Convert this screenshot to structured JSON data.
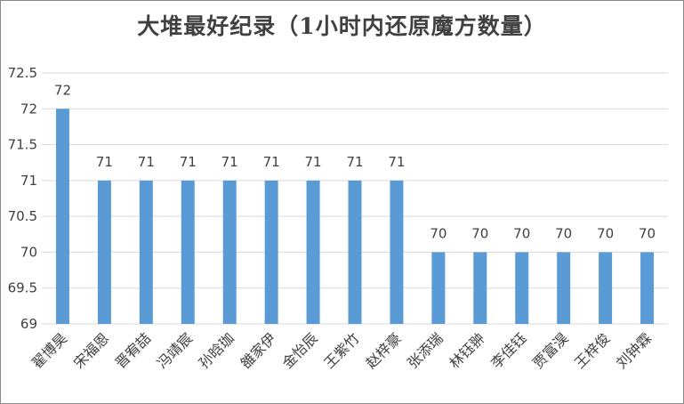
{
  "chart_data": {
    "type": "bar",
    "title": "大堆最好纪录（1小时内还原魔方数量）",
    "categories": [
      "翟博昊",
      "宋福恩",
      "晋宥喆",
      "冯靖宸",
      "孙晗珈",
      "雒家伊",
      "金怡辰",
      "王紫竹",
      "赵梓豪",
      "张添瑞",
      "林钰翀",
      "李佳钰",
      "贾富淏",
      "王梓俊",
      "刘钟霖"
    ],
    "values": [
      72,
      71,
      71,
      71,
      71,
      71,
      71,
      71,
      71,
      70,
      70,
      70,
      70,
      70,
      70
    ],
    "ylim": [
      69,
      72.5
    ],
    "yticks": [
      "69",
      "69.5",
      "70",
      "70.5",
      "71",
      "71.5",
      "72",
      "72.5"
    ],
    "grid": true,
    "bar_color": "#5b9bd5",
    "grid_color": "#d9d9d9",
    "xlabel": "",
    "ylabel": ""
  }
}
